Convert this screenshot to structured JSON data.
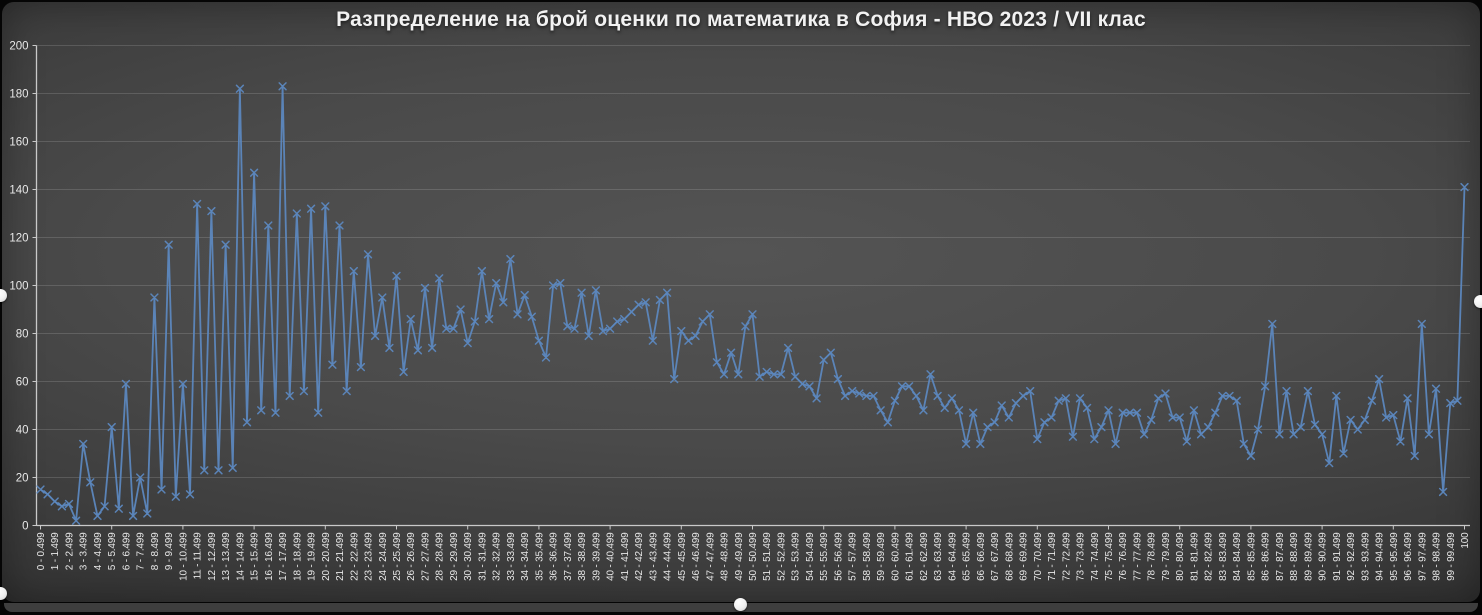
{
  "window": {
    "selection_handles": [
      "left-middle",
      "right-middle",
      "bottom-left",
      "bottom-center"
    ]
  },
  "colors": {
    "series_line": "#5C87BE",
    "axis_line": "#c9c9c9",
    "gridline": "rgba(255,255,255,0.14)",
    "tick_label": "#e8e8e8",
    "title_text": "#f2f2f2"
  },
  "chart_data": {
    "type": "line",
    "title": "Разпределение на брой оценки по математика в София - НВО 2023 / VII клас",
    "xlabel": "",
    "ylabel": "",
    "ylim": [
      0,
      200
    ],
    "y_tick_step": 20,
    "y_tick_labels": [
      "0",
      "20",
      "40",
      "60",
      "80",
      "100",
      "120",
      "140",
      "160",
      "180",
      "200"
    ],
    "grid": "horizontal",
    "legend": "none",
    "marker": "x",
    "note_bins": "x categories are 0.5-wide score bins; axis shows every second bin label",
    "x_labels": [
      "0 - 0.499",
      "1 - 1.499",
      "2 - 2.499",
      "3 - 3.499",
      "4 - 4.499",
      "5 - 5.499",
      "6 - 6.499",
      "7 - 7.499",
      "8 - 8.499",
      "9 - 9.499",
      "10 - 10.499",
      "11 - 11.499",
      "12 - 12.499",
      "13 - 13.499",
      "14 - 14.499",
      "15 - 15.499",
      "16 - 16.499",
      "17 - 17.499",
      "18 - 18.499",
      "19 - 19.499",
      "20 - 20.499",
      "21 - 21.499",
      "22 - 22.499",
      "23 - 23.499",
      "24 - 24.499",
      "25 - 25.499",
      "26 - 26.499",
      "27 - 27.499",
      "28 - 28.499",
      "29 - 29.499",
      "30 - 30.499",
      "31 - 31.499",
      "32 - 32.499",
      "33 - 33.499",
      "34 - 34.499",
      "35 - 35.499",
      "36 - 36.499",
      "37 - 37.499",
      "38 - 38.499",
      "39 - 39.499",
      "40 - 40.499",
      "41 - 41.499",
      "42 - 42.499",
      "43 - 43.499",
      "44 - 44.499",
      "45 - 45.499",
      "46 - 46.499",
      "47 - 47.499",
      "48 - 48.499",
      "49 - 49.499",
      "50 - 50.499",
      "51 - 51.499",
      "52 - 52.499",
      "53 - 53.499",
      "54 - 54.499",
      "55 - 55.499",
      "56 - 56.499",
      "57 - 57.499",
      "58 - 58.499",
      "59 - 59.499",
      "60 - 60.499",
      "61 - 61.499",
      "62 - 62.499",
      "63 - 63.499",
      "64 - 64.499",
      "65 - 65.499",
      "66 - 66.499",
      "67 - 67.499",
      "68 - 68.499",
      "69 - 69.499",
      "70 - 70.499",
      "71 - 71.499",
      "72 - 72.499",
      "73 - 73.499",
      "74 - 74.499",
      "75 - 75.499",
      "76 - 76.499",
      "77 - 77.499",
      "78 - 78.499",
      "79 - 79.499",
      "80 - 80.499",
      "81 - 81.499",
      "82 - 82.499",
      "83 - 83.499",
      "84 - 84.499",
      "85 - 85.499",
      "86 - 86.499",
      "87 - 87.499",
      "88 - 88.499",
      "89 - 89.499",
      "90 - 90.499",
      "91 - 91.499",
      "92 - 92.499",
      "93 - 93.499",
      "94 - 94.499",
      "95 - 95.499",
      "96 - 96.499",
      "97 - 97.499",
      "98 - 98.499",
      "99 - 99.499",
      "100"
    ],
    "values": [
      15,
      13,
      10,
      8,
      9,
      2,
      34,
      18,
      4,
      8,
      41,
      7,
      59,
      4,
      20,
      5,
      95,
      15,
      117,
      12,
      59,
      13,
      134,
      23,
      131,
      23,
      117,
      24,
      182,
      43,
      147,
      48,
      125,
      47,
      183,
      54,
      130,
      56,
      132,
      47,
      133,
      67,
      125,
      56,
      106,
      66,
      113,
      79,
      95,
      74,
      104,
      64,
      86,
      73,
      99,
      74,
      103,
      82,
      82,
      90,
      76,
      85,
      106,
      86,
      101,
      93,
      111,
      88,
      96,
      87,
      77,
      70,
      100,
      101,
      83,
      82,
      97,
      79,
      98,
      81,
      82,
      85,
      86,
      89,
      92,
      93,
      77,
      94,
      97,
      61,
      81,
      77,
      79,
      85,
      88,
      68,
      63,
      72,
      63,
      83,
      88,
      62,
      64,
      63,
      63,
      74,
      62,
      59,
      58,
      53,
      69,
      72,
      61,
      54,
      56,
      55,
      54,
      54,
      48,
      43,
      52,
      58,
      58,
      54,
      48,
      63,
      54,
      49,
      53,
      48,
      34,
      47,
      34,
      41,
      43,
      50,
      45,
      51,
      54,
      56,
      36,
      43,
      45,
      52,
      53,
      37,
      53,
      49,
      36,
      41,
      48,
      34,
      47,
      47,
      47,
      38,
      44,
      53,
      55,
      45,
      45,
      35,
      48,
      38,
      41,
      47,
      54,
      54,
      52,
      34,
      29,
      40,
      58,
      84,
      38,
      56,
      38,
      41,
      56,
      42,
      38,
      26,
      54,
      30,
      44,
      40,
      44,
      52,
      61,
      45,
      46,
      35,
      53,
      29,
      84,
      38,
      57,
      14,
      51,
      52,
      141
    ]
  }
}
